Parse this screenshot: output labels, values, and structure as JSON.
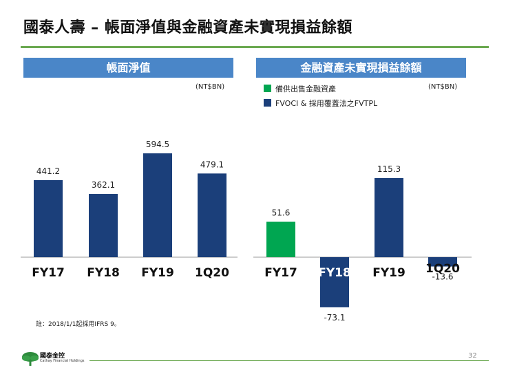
{
  "title": "國泰人壽 – 帳面淨值與金融資產未實現損益餘額",
  "left_panel": {
    "heading": "帳面淨值",
    "unit": "(NT$BN)"
  },
  "right_panel": {
    "heading": "金融資產未實現損益餘額",
    "unit": "(NT$BN)",
    "legend": [
      {
        "label": "備供出售金融資產",
        "color": "#00a651"
      },
      {
        "label": "FVOCI & 採用覆蓋法之FVTPL",
        "color": "#1b3f7a"
      }
    ]
  },
  "footnote": "註：2018/1/1起採用IFRS 9。",
  "logo": {
    "name": "國泰金控",
    "sub": "Cathay Financial Holdings",
    "icon": "tree-logo-icon"
  },
  "page_number": "32",
  "colors": {
    "bar_blue": "#1b3f7a",
    "bar_green": "#00a651",
    "header_blue": "#4a86c8",
    "accent_green": "#6aa84f"
  },
  "chart_data": [
    {
      "type": "bar",
      "title": "帳面淨值",
      "categories": [
        "FY17",
        "FY18",
        "FY19",
        "1Q20"
      ],
      "value_labels": [
        "441.2",
        "362.1",
        "594.5",
        "479.1"
      ],
      "series": [
        {
          "values": [
            441.2,
            362.1,
            594.5,
            479.1
          ]
        }
      ],
      "ylim": [
        0,
        600
      ],
      "grid": false
    },
    {
      "type": "bar",
      "title": "金融資產未實現損益餘額",
      "categories": [
        "FY17",
        "FY18",
        "FY19",
        "1Q20"
      ],
      "value_labels": [
        "51.6",
        "-73.1",
        "115.3",
        "-13.6"
      ],
      "series": [
        {
          "name": "備供出售金融資產",
          "values": [
            51.6,
            null,
            null,
            null
          ]
        },
        {
          "name": "FVOCI & 採用覆蓋法之FVTPL",
          "values": [
            null,
            -73.1,
            115.3,
            -13.6
          ]
        }
      ],
      "ylim": [
        -80,
        120
      ],
      "grid": false,
      "legend": "top-left"
    }
  ]
}
